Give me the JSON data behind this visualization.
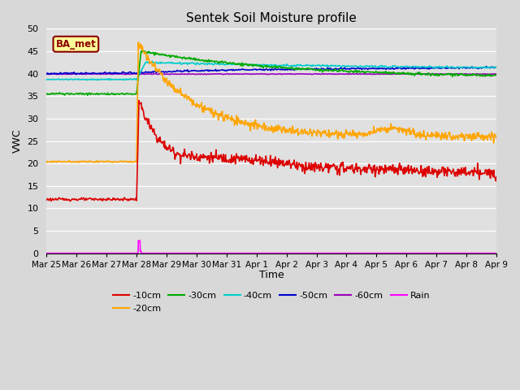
{
  "title": "Sentek Soil Moisture profile",
  "xlabel": "Time",
  "ylabel": "VWC",
  "ylim": [
    0,
    50
  ],
  "yticks": [
    0,
    5,
    10,
    15,
    20,
    25,
    30,
    35,
    40,
    45,
    50
  ],
  "xtick_labels": [
    "Mar 25",
    "Mar 26",
    "Mar 27",
    "Mar 28",
    "Mar 29",
    "Mar 30",
    "Mar 31",
    "Apr 1",
    "Apr 2",
    "Apr 3",
    "Apr 4",
    "Apr 5",
    "Apr 6",
    "Apr 7",
    "Apr 8",
    "Apr 9"
  ],
  "background_color": "#d8d8d8",
  "plot_bg_color": "#e0e0e0",
  "grid_color": "#ffffff",
  "annotation_text": "BA_met",
  "annotation_bg": "#ffff99",
  "annotation_border": "#8b0000",
  "colors": {
    "-10cm": "#dd0000",
    "-20cm": "#ffa500",
    "-30cm": "#00aa00",
    "-40cm": "#00cccc",
    "-50cm": "#0000cc",
    "-60cm": "#9900bb",
    "Rain": "#ff00ff"
  }
}
